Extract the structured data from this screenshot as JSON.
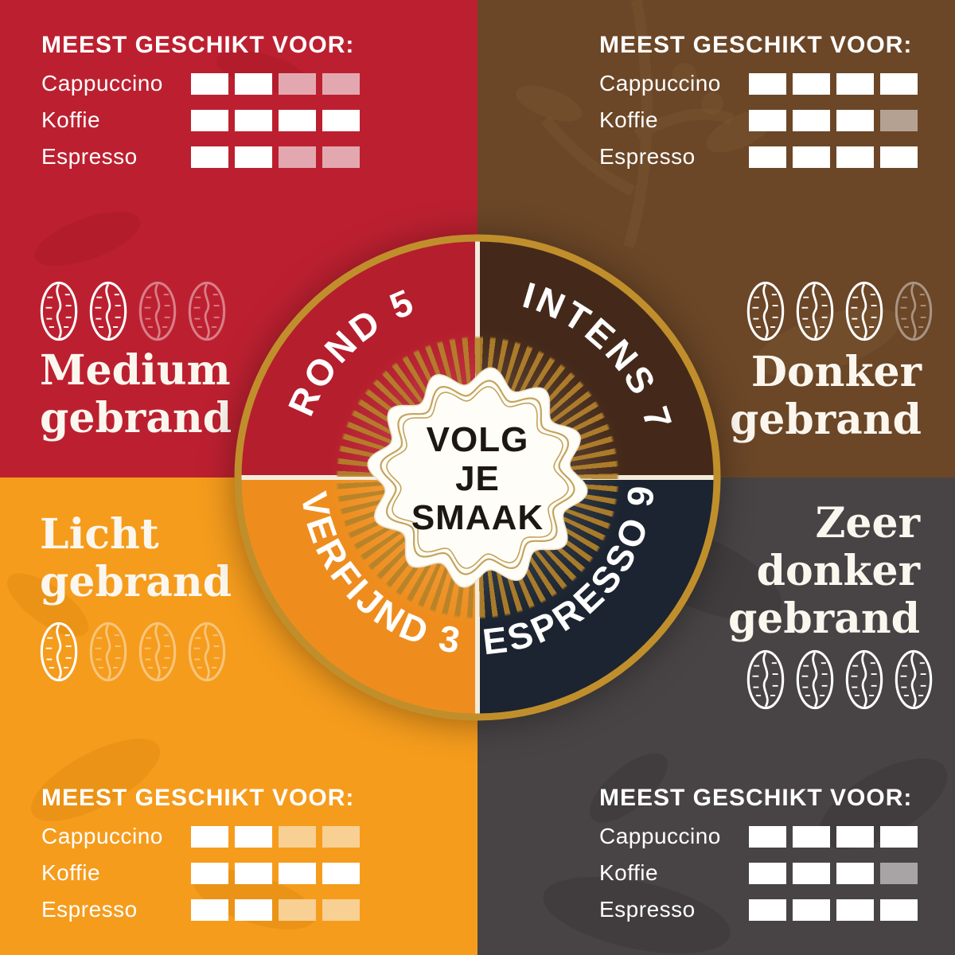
{
  "suitability_heading": "MEEST GESCHIKT VOOR:",
  "badge": {
    "lines": [
      "VOLG",
      "JE",
      "SMAAK"
    ]
  },
  "wheel": {
    "ring_color": "#c08f2c",
    "divider_color": "#f3ecdc",
    "ray_color": "#b4822a",
    "segments": [
      {
        "label": "ROND 5",
        "value": 5,
        "color": "#b51e2d"
      },
      {
        "label": "INTENS 7",
        "value": 7,
        "color": "#44291a"
      },
      {
        "label": "VERFIJND 3",
        "value": 3,
        "color": "#ee8d1d"
      },
      {
        "label": "ESPRESSO 9",
        "value": 9,
        "color": "#1b2430"
      }
    ]
  },
  "quadrants": [
    {
      "title": "Medium gebrand",
      "title_lines": [
        "Medium",
        "gebrand"
      ],
      "bg": "#bc2030",
      "roast_beans": {
        "filled": 2,
        "total": 4
      },
      "ratings": [
        {
          "label": "Cappuccino",
          "filled": 2,
          "total": 4
        },
        {
          "label": "Koffie",
          "filled": 4,
          "total": 4
        },
        {
          "label": "Espresso",
          "filled": 2,
          "total": 4
        }
      ]
    },
    {
      "title": "Donker gebrand",
      "title_lines": [
        "Donker",
        "gebrand"
      ],
      "bg": "#6b4627",
      "roast_beans": {
        "filled": 3,
        "total": 4
      },
      "ratings": [
        {
          "label": "Cappuccino",
          "filled": 4,
          "total": 4
        },
        {
          "label": "Koffie",
          "filled": 3,
          "total": 4
        },
        {
          "label": "Espresso",
          "filled": 4,
          "total": 4
        }
      ]
    },
    {
      "title": "Licht gebrand",
      "title_lines": [
        "Licht",
        "gebrand"
      ],
      "bg": "#f59c1d",
      "roast_beans": {
        "filled": 1,
        "total": 4
      },
      "ratings": [
        {
          "label": "Cappuccino",
          "filled": 2,
          "total": 4
        },
        {
          "label": "Koffie",
          "filled": 4,
          "total": 4
        },
        {
          "label": "Espresso",
          "filled": 2,
          "total": 4
        }
      ]
    },
    {
      "title": "Zeer donker gebrand",
      "title_lines": [
        "Zeer",
        "donker",
        "gebrand"
      ],
      "bg": "#484445",
      "roast_beans": {
        "filled": 4,
        "total": 4
      },
      "ratings": [
        {
          "label": "Cappuccino",
          "filled": 4,
          "total": 4
        },
        {
          "label": "Koffie",
          "filled": 3,
          "total": 4
        },
        {
          "label": "Espresso",
          "filled": 4,
          "total": 4
        }
      ]
    }
  ]
}
